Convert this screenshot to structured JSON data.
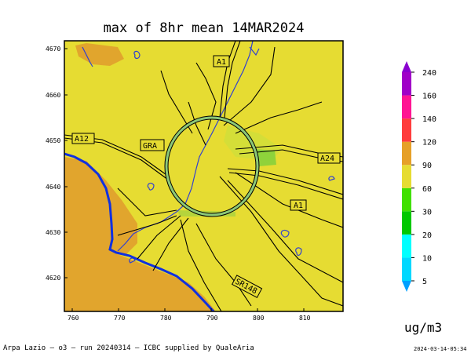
{
  "title": "max of 8hr mean 14MAR2024",
  "units": "ug/m3",
  "footer": "Arpa Lazio — o3 — run 20240314 — ICBC supplied by QualeAria",
  "timestamp": "2024-03-14-05:34",
  "axes": {
    "x_ticks": [
      "760",
      "770",
      "780",
      "790",
      "800",
      "810"
    ],
    "y_ticks": [
      "4670",
      "4660",
      "4650",
      "4640",
      "4630",
      "4620"
    ]
  },
  "road_labels": [
    "A1",
    "A12",
    "GRA",
    "A24",
    "A1",
    "SR148"
  ],
  "colorbar": {
    "levels": [
      "5",
      "10",
      "20",
      "30",
      "60",
      "90",
      "120",
      "140",
      "160",
      "240"
    ],
    "colors": [
      "#00a0ff",
      "#00d8ff",
      "#00ffff",
      "#00c800",
      "#40e000",
      "#e6dc32",
      "#e6a028",
      "#ff3c3c",
      "#ff1493",
      "#a000c8",
      "#8a00d0"
    ]
  },
  "map_colors": {
    "background": "#e6dc32",
    "sea": "#e1a52d",
    "coast": "#1030e0",
    "rivers": "#3040d0",
    "roads": "#000000",
    "ring_road": "#70c070"
  }
}
